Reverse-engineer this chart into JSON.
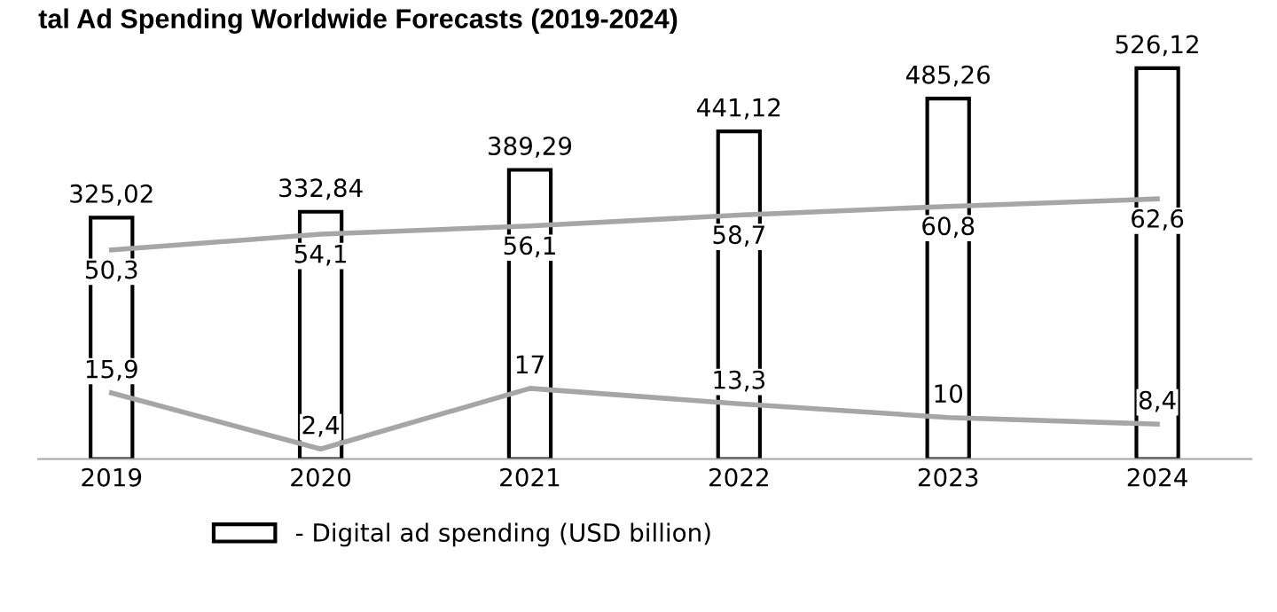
{
  "chart_data": {
    "type": "bar",
    "title": "tal Ad Spending Worldwide Forecasts (2019-2024)",
    "categories": [
      "2019",
      "2020",
      "2021",
      "2022",
      "2023",
      "2024"
    ],
    "tick_labels": "x",
    "grid": false,
    "legend": "bottom",
    "series": [
      {
        "name": "- Digital ad spending (USD billion)",
        "color": "#ffffff",
        "values": [
          325.02,
          332.84,
          389.29,
          441.12,
          485.26,
          526.12
        ],
        "value_labels": [
          "325,02",
          "332,84",
          "389,29",
          "441,12",
          "485,26",
          "526,12"
        ]
      },
      {
        "type": "line",
        "axis": "y2",
        "color": "#a6a6a6",
        "values": [
          50.3,
          54.1,
          56.1,
          58.7,
          60.8,
          62.6
        ],
        "value_labels": [
          "50,3",
          "54,1",
          "56,1",
          "58,7",
          "60,8",
          "62,6"
        ]
      },
      {
        "type": "line",
        "axis": "y2",
        "color": "#a6a6a6",
        "values": [
          15.9,
          2.4,
          17,
          13.3,
          10,
          8.4
        ],
        "value_labels": [
          "15,9",
          "2,4",
          "17",
          "13,3",
          "10",
          "8,4"
        ]
      }
    ]
  }
}
